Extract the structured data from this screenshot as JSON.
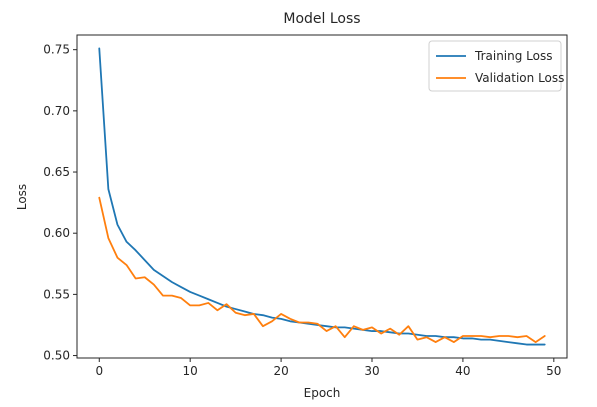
{
  "chart_data": {
    "type": "line",
    "title": "Model Loss",
    "xlabel": "Epoch",
    "ylabel": "Loss",
    "xlim": [
      -2.45,
      51.45
    ],
    "ylim": [
      0.498,
      0.762
    ],
    "xticks": [
      0,
      10,
      20,
      30,
      40,
      50
    ],
    "xtick_labels": [
      "0",
      "10",
      "20",
      "30",
      "40",
      "50"
    ],
    "yticks": [
      0.5,
      0.55,
      0.6,
      0.65,
      0.7,
      0.75
    ],
    "ytick_labels": [
      "0.50",
      "0.55",
      "0.60",
      "0.65",
      "0.70",
      "0.75"
    ],
    "grid": false,
    "legend_position": "top-right",
    "x": [
      0,
      1,
      2,
      3,
      4,
      5,
      6,
      7,
      8,
      9,
      10,
      11,
      12,
      13,
      14,
      15,
      16,
      17,
      18,
      19,
      20,
      21,
      22,
      23,
      24,
      25,
      26,
      27,
      28,
      29,
      30,
      31,
      32,
      33,
      34,
      35,
      36,
      37,
      38,
      39,
      40,
      41,
      42,
      43,
      44,
      45,
      46,
      47,
      48,
      49
    ],
    "series": [
      {
        "name": "Training Loss",
        "color": "#1f77b4",
        "values": [
          0.751,
          0.636,
          0.607,
          0.593,
          0.586,
          0.578,
          0.57,
          0.565,
          0.56,
          0.556,
          0.552,
          0.549,
          0.546,
          0.543,
          0.54,
          0.538,
          0.536,
          0.534,
          0.533,
          0.531,
          0.53,
          0.528,
          0.527,
          0.526,
          0.525,
          0.524,
          0.523,
          0.523,
          0.522,
          0.521,
          0.52,
          0.52,
          0.519,
          0.518,
          0.518,
          0.517,
          0.516,
          0.516,
          0.515,
          0.515,
          0.514,
          0.514,
          0.513,
          0.513,
          0.512,
          0.511,
          0.51,
          0.509,
          0.509,
          0.509
        ]
      },
      {
        "name": "Validation Loss",
        "color": "#ff7f0e",
        "values": [
          0.629,
          0.596,
          0.58,
          0.574,
          0.563,
          0.564,
          0.558,
          0.549,
          0.549,
          0.547,
          0.541,
          0.541,
          0.543,
          0.537,
          0.542,
          0.535,
          0.533,
          0.534,
          0.524,
          0.528,
          0.534,
          0.53,
          0.527,
          0.527,
          0.526,
          0.52,
          0.524,
          0.515,
          0.524,
          0.521,
          0.523,
          0.518,
          0.522,
          0.517,
          0.524,
          0.513,
          0.515,
          0.511,
          0.515,
          0.511,
          0.516,
          0.516,
          0.516,
          0.515,
          0.516,
          0.516,
          0.515,
          0.516,
          0.511,
          0.516
        ]
      }
    ]
  }
}
